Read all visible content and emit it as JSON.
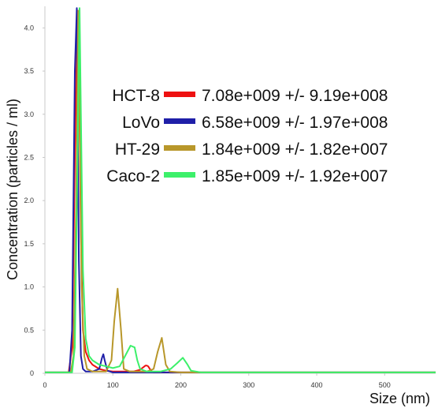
{
  "chart_data": {
    "type": "line",
    "title": "",
    "xlabel": "Size (nm)",
    "ylabel": "Concentration (particles / ml)",
    "xlim": [
      0,
      575
    ],
    "ylim": [
      0,
      4.25
    ],
    "xticks": [
      "0",
      "100",
      "200",
      "300",
      "400",
      "500"
    ],
    "yticks": [
      "0",
      "0.5",
      "1.0",
      "1.5",
      "2.0",
      "2.5",
      "3.0",
      "3.5",
      "4.0"
    ],
    "grid": false,
    "legend_position": "top-right",
    "series": [
      {
        "name": "HCT-8",
        "color": "#ee1111",
        "value_text": "7.08e+009 +/- 9.19e+008",
        "x": [
          0,
          35,
          40,
          44,
          48,
          50,
          53,
          56,
          60,
          65,
          70,
          80,
          90,
          100,
          110,
          120,
          130,
          140,
          148,
          150,
          152,
          156,
          160,
          170,
          180,
          200,
          575
        ],
        "y": [
          0.01,
          0.01,
          0.3,
          2.5,
          4.2,
          3.6,
          1.6,
          0.5,
          0.25,
          0.15,
          0.1,
          0.05,
          0.03,
          0.02,
          0.02,
          0.02,
          0.02,
          0.04,
          0.09,
          0.09,
          0.08,
          0.03,
          0.01,
          0.01,
          0.01,
          0.01,
          0.01
        ]
      },
      {
        "name": "LoVo",
        "color": "#1f1fa8",
        "value_text": "6.58e+009 +/- 1.97e+008",
        "x": [
          0,
          36,
          40,
          44,
          47,
          50,
          53,
          56,
          60,
          70,
          80,
          84,
          86,
          88,
          92,
          100,
          575
        ],
        "y": [
          0.01,
          0.01,
          0.5,
          3.5,
          4.23,
          1.3,
          0.2,
          0.05,
          0.02,
          0.02,
          0.05,
          0.18,
          0.22,
          0.15,
          0.03,
          0.01,
          0.01
        ]
      },
      {
        "name": "HT-29",
        "color": "#b8972a",
        "value_text": "1.84e+009 +/- 1.82e+007",
        "x": [
          0,
          38,
          42,
          46,
          49,
          51,
          54,
          58,
          62,
          70,
          90,
          98,
          102,
          107,
          112,
          116,
          125,
          150,
          160,
          166,
          172,
          178,
          184,
          200,
          575
        ],
        "y": [
          0.01,
          0.01,
          0.2,
          2.0,
          4.2,
          3.0,
          1.0,
          0.2,
          0.05,
          0.02,
          0.02,
          0.15,
          0.6,
          0.98,
          0.5,
          0.05,
          0.02,
          0.02,
          0.05,
          0.25,
          0.41,
          0.1,
          0.02,
          0.01,
          0.01
        ]
      },
      {
        "name": "Caco-2",
        "color": "#3cf06a",
        "value_text": "1.85e+009 +/- 1.92e+007",
        "x": [
          0,
          40,
          44,
          48,
          51,
          53,
          56,
          60,
          65,
          70,
          80,
          90,
          100,
          110,
          118,
          126,
          132,
          136,
          140,
          150,
          170,
          185,
          195,
          203,
          210,
          215,
          230,
          575
        ],
        "y": [
          0.01,
          0.01,
          0.3,
          2.5,
          4.23,
          3.0,
          1.2,
          0.4,
          0.2,
          0.15,
          0.1,
          0.08,
          0.06,
          0.08,
          0.2,
          0.32,
          0.3,
          0.15,
          0.05,
          0.02,
          0.02,
          0.05,
          0.12,
          0.18,
          0.1,
          0.03,
          0.01,
          0.01
        ]
      }
    ]
  }
}
